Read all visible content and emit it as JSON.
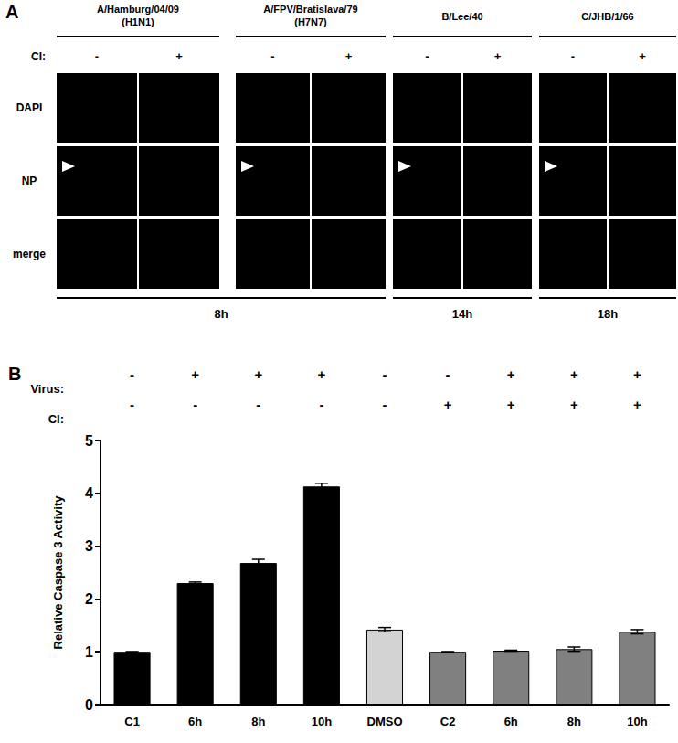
{
  "figure": {
    "panel_a": {
      "label": "A",
      "treatment_label": "CI:",
      "conditions": [
        "-",
        "+"
      ],
      "rows": [
        "DAPI",
        "NP",
        "merge"
      ],
      "groups": [
        {
          "name": [
            "A/Hamburg/04/09",
            "(H1N1)"
          ],
          "time": "8h"
        },
        {
          "name": [
            "A/FPV/Bratislava/79",
            "(H7N7)"
          ],
          "time": "8h"
        },
        {
          "name": [
            "B/Lee/40"
          ],
          "time": "14h"
        },
        {
          "name": [
            "C/JHB/1/66"
          ],
          "time": "18h"
        }
      ]
    }
  },
  "chart_data": {
    "type": "bar",
    "title": "B",
    "categories": [
      "C1",
      "6h",
      "8h",
      "10h",
      "DMSO",
      "C2",
      "6h",
      "8h",
      "10h"
    ],
    "values": [
      1.0,
      2.3,
      2.68,
      4.13,
      1.42,
      1.0,
      1.02,
      1.05,
      1.38
    ],
    "errors": [
      0.0,
      0.02,
      0.07,
      0.06,
      0.04,
      0.0,
      0.01,
      0.04,
      0.04
    ],
    "colors": [
      "#000000",
      "#000000",
      "#000000",
      "#000000",
      "#d3d3d3",
      "#808080",
      "#808080",
      "#808080",
      "#808080"
    ],
    "condition_rows": [
      {
        "label": "Virus:",
        "values": [
          "-",
          "+",
          "+",
          "+",
          "-",
          "-",
          "+",
          "+",
          "+"
        ]
      },
      {
        "label": "CI:",
        "values": [
          "-",
          "-",
          "-",
          "-",
          "-",
          "+",
          "+",
          "+",
          "+"
        ]
      }
    ],
    "y_label": "Relative Caspase 3 Activity",
    "ylim": [
      0,
      5
    ],
    "yticks": [
      0,
      1,
      2,
      3,
      4,
      5
    ],
    "grid": false
  }
}
